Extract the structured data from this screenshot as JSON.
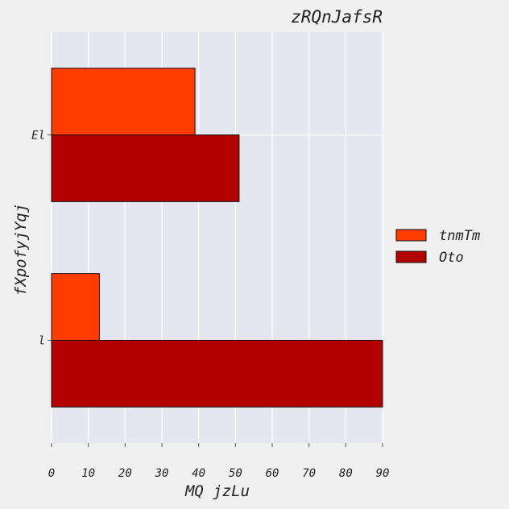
{
  "chart_data": {
    "type": "bar",
    "orientation": "horizontal",
    "title": "zRQnJafsR",
    "xlabel": "MQ jzLu",
    "ylabel": "fXpofyjYqj",
    "categories": [
      "El",
      "l"
    ],
    "series": [
      {
        "name": "tnmTm",
        "color": "#ff3c00",
        "values": [
          39,
          13
        ]
      },
      {
        "name": "Oto",
        "color": "#b30000",
        "values": [
          51,
          90
        ]
      }
    ],
    "xlim": [
      0,
      90
    ],
    "xticks": [
      0,
      10,
      20,
      30,
      40,
      50,
      60,
      70,
      80,
      90
    ],
    "grid": true,
    "legend_position": "right"
  }
}
